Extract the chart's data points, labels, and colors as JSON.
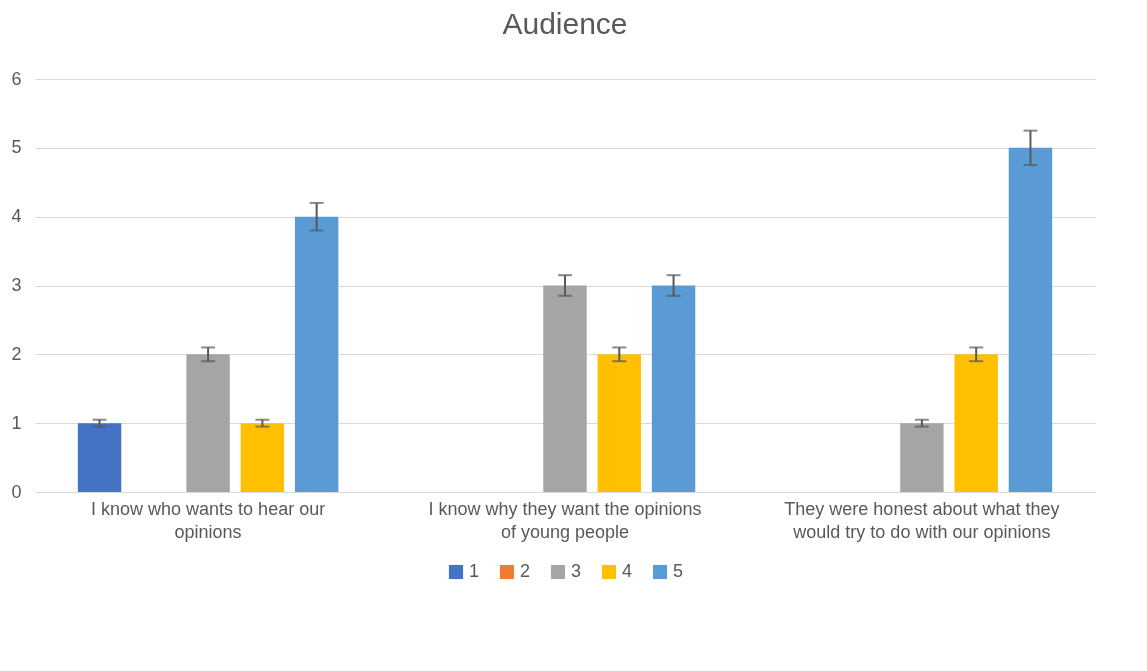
{
  "chart_data": {
    "type": "bar",
    "title": "Audience",
    "categories": [
      "I know who wants to hear our opinions",
      "I know why they want the opinions of young people",
      "They were honest about what they would try to do with our opinions"
    ],
    "series": [
      {
        "name": "1",
        "color": "#4472c4",
        "values": [
          1,
          0,
          0
        ],
        "errors": [
          0.05,
          null,
          null
        ]
      },
      {
        "name": "2",
        "color": "#ed7d31",
        "values": [
          0,
          0,
          0
        ],
        "errors": [
          null,
          null,
          null
        ]
      },
      {
        "name": "3",
        "color": "#a5a5a5",
        "values": [
          2,
          3,
          1
        ],
        "errors": [
          0.1,
          0.15,
          0.05
        ]
      },
      {
        "name": "4",
        "color": "#ffc000",
        "values": [
          1,
          2,
          2
        ],
        "errors": [
          0.05,
          0.1,
          0.1
        ]
      },
      {
        "name": "5",
        "color": "#5b9bd5",
        "values": [
          4,
          3,
          5
        ],
        "errors": [
          0.2,
          0.15,
          0.25
        ]
      }
    ],
    "ylim": [
      0,
      6
    ],
    "yticks": [
      0,
      1,
      2,
      3,
      4,
      5,
      6
    ],
    "grid": "y",
    "legend": "bottom"
  }
}
